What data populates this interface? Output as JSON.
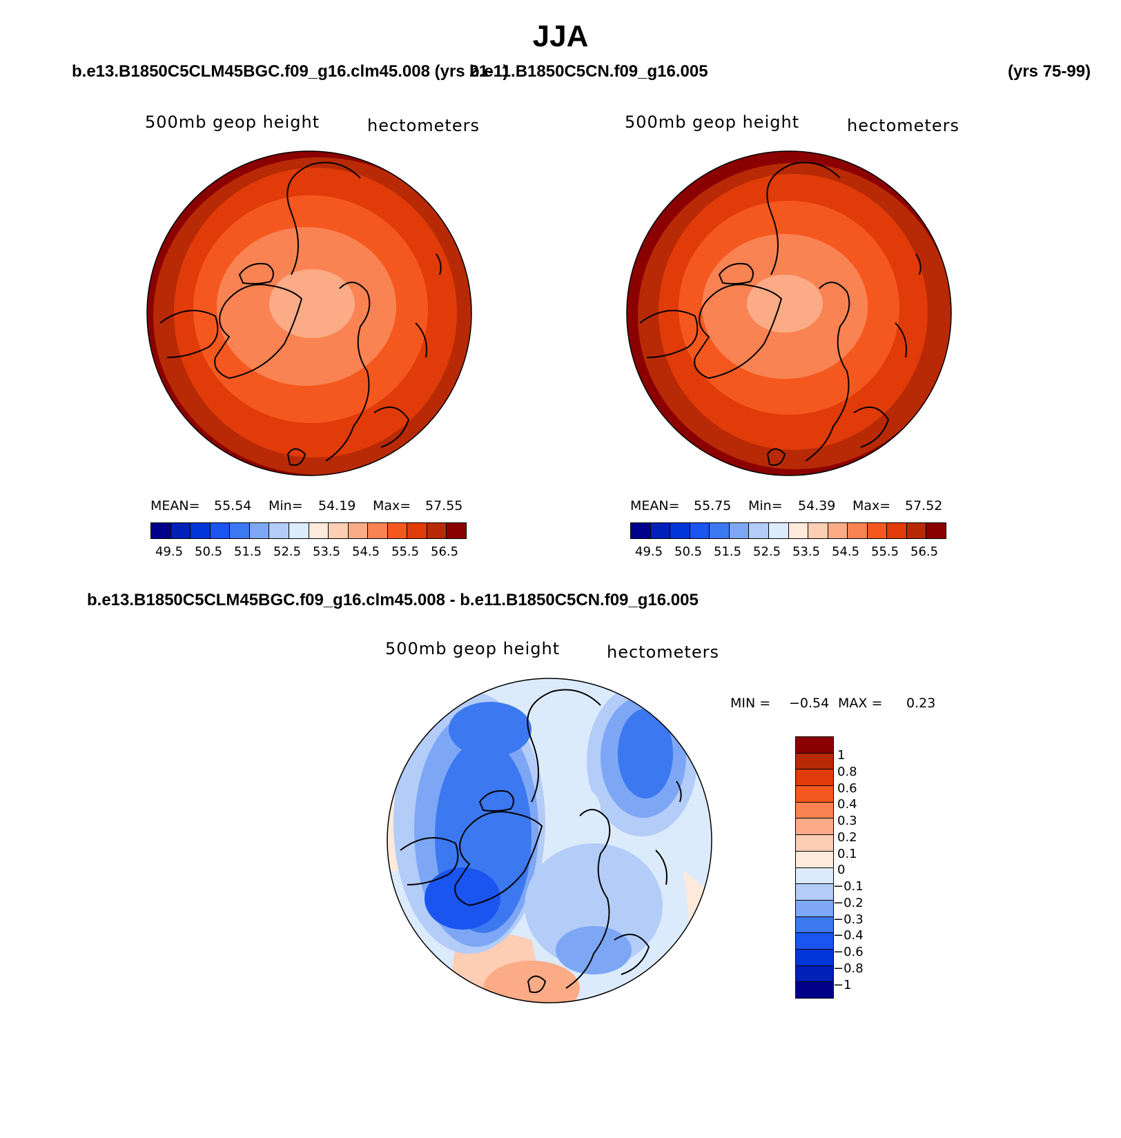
{
  "title": "JJA",
  "header": {
    "case1": "b.e13.B1850C5CLM45BGC.f09_g16.clm45.008 (yrs 21-1)",
    "case2": "b.e11.B1850C5CN.f09_g16.005",
    "case2_years": "(yrs 75-99)",
    "diff_title": "b.e13.B1850C5CLM45BGC.f09_g16.clm45.008 - b.e11.B1850C5CN.f09_g16.005"
  },
  "panels": [
    {
      "variable": "500mb geop height",
      "units": "hectometers",
      "mean_label": "MEAN=",
      "mean": "55.54",
      "min_label": "Min=",
      "min": "54.19",
      "max_label": "Max=",
      "max": "57.55"
    },
    {
      "variable": "500mb geop height",
      "units": "hectometers",
      "mean_label": "MEAN=",
      "mean": "55.75",
      "min_label": "Min=",
      "min": "54.39",
      "max_label": "Max=",
      "max": "57.52"
    }
  ],
  "diff_panel": {
    "variable": "500mb geop height",
    "units": "hectometers",
    "min_label": "MIN =",
    "min": "−0.54",
    "max_label": "MAX =",
    "max": "0.23"
  },
  "abs_colorbar": {
    "colors": [
      "#00008b",
      "#0020b8",
      "#0036d8",
      "#1a55f0",
      "#3c78f0",
      "#7da7f5",
      "#b3ccf8",
      "#dcebfc",
      "#feeadb",
      "#fdcdb4",
      "#fbab86",
      "#f98352",
      "#f5581f",
      "#e03b08",
      "#b82a05",
      "#8b0000"
    ],
    "labels": [
      "49.5",
      "50.5",
      "51.5",
      "52.5",
      "53.5",
      "54.5",
      "55.5",
      "56.5"
    ]
  },
  "diff_colorbar": {
    "colors": [
      "#8b0000",
      "#b82a05",
      "#e03b08",
      "#f5581f",
      "#f98352",
      "#fbab86",
      "#fdcdb4",
      "#feeadb",
      "#dcebfc",
      "#b3ccf8",
      "#7da7f5",
      "#3c78f0",
      "#1a55f0",
      "#0036d8",
      "#0020b8",
      "#00008b"
    ],
    "labels": [
      "1",
      "0.8",
      "0.6",
      "0.4",
      "0.3",
      "0.2",
      "0.1",
      "0",
      "−0.1",
      "−0.2",
      "−0.3",
      "−0.4",
      "−0.6",
      "−0.8",
      "−1"
    ]
  }
}
